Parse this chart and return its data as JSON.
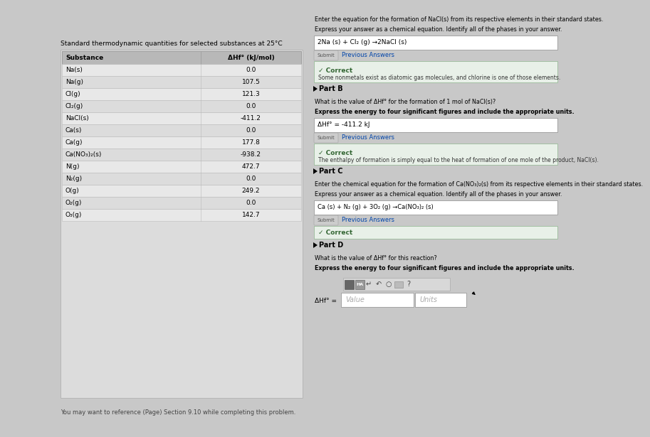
{
  "title": "Standard thermodynamic quantities for selected substances at 25°C",
  "col1_header": "Substance",
  "col2_header": "ΔHf° (kJ/mol)",
  "substances": [
    "Na(s)",
    "Na(g)",
    "Cl(g)",
    "Cl₂(g)",
    "NaCl(s)",
    "Ca(s)",
    "Ca(g)",
    "Ca(NO₃)₂(s)",
    "N(g)",
    "N₂(g)",
    "O(g)",
    "O₂(g)",
    "O₃(g)"
  ],
  "values": [
    "0.0",
    "107.5",
    "121.3",
    "0.0",
    "-411.2",
    "0.0",
    "177.8",
    "-938.2",
    "472.7",
    "0.0",
    "249.2",
    "0.0",
    "142.7"
  ],
  "note": "You may want to reference (Page) Section 9.10 while completing this problem.",
  "bg_color": "#c8c8c8",
  "left_panel_bg": "#dcdcdc",
  "table_header_bg": "#b8b8b8",
  "row_bg_even": "#e8e8e8",
  "row_bg_odd": "#dcdcdc",
  "right_panel_bg": "#e0e0e0",
  "white": "#ffffff",
  "correct_bg": "#e8f0e8",
  "correct_border": "#99bb99",
  "correct_color": "#336633",
  "part_A_q1": "Enter the equation for the formation of NaCl(s) from its respective elements in their standard states.",
  "part_A_q2": "Express your answer as a chemical equation. Identify all of the phases in your answer.",
  "part_A_ans": "2Na (s) + Cl₂ (g) →2NaCl (s)",
  "part_A_correct": "Some nonmetals exist as diatomic gas molecules, and chlorine is one of those elements.",
  "part_B_label": "Part B",
  "part_B_q1": "What is the value of ΔHf° for the formation of 1 mol of NaCl(s)?",
  "part_B_q2": "Express the energy to four significant figures and include the appropriate units.",
  "part_B_ans": "ΔHf° = -411.2 kJ",
  "part_B_correct": "The enthalpy of formation is simply equal to the heat of formation of one mole of the product, NaCl(s).",
  "part_C_label": "Part C",
  "part_C_q1": "Enter the chemical equation for the formation of Ca(NO₃)₂(s) from its respective elements in their standard states.",
  "part_C_q2": "Express your answer as a chemical equation. Identify all of the phases in your answer.",
  "part_C_ans": "Ca (s) + N₂ (g) + 3O₂ (g) →Ca(NO₃)₂ (s)",
  "part_D_label": "Part D",
  "part_D_q1": "What is the value of ΔHf° for this reaction?",
  "part_D_q2": "Express the energy to four significant figures and include the appropriate units."
}
